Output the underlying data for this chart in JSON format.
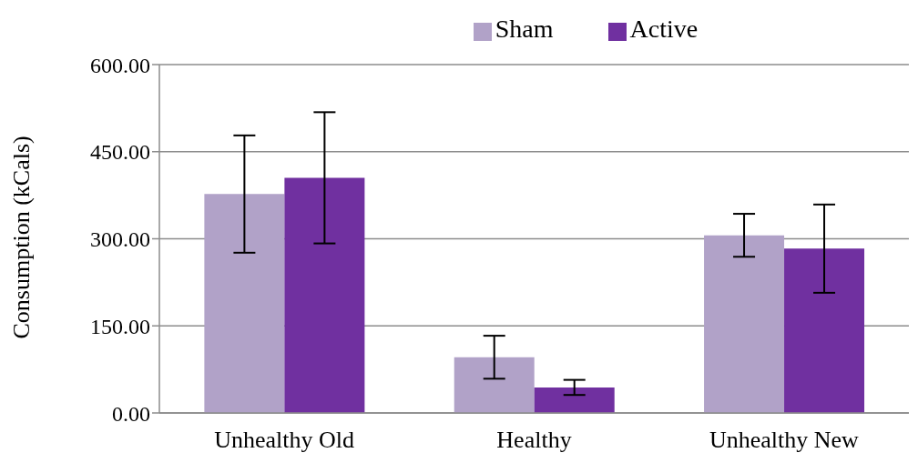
{
  "chart_data": {
    "type": "bar",
    "ylabel": "Consumption (kCals)",
    "categories": [
      "Unhealthy Old",
      "Healthy",
      "Unhealthy New"
    ],
    "series": [
      {
        "name": "Sham",
        "color": "#b1a2c8",
        "values": [
          377,
          96,
          306
        ],
        "errors": [
          101,
          37,
          37
        ]
      },
      {
        "name": "Active",
        "color": "#7030a0",
        "values": [
          405,
          44,
          283
        ],
        "errors": [
          113,
          13,
          76
        ]
      }
    ],
    "ylim": [
      0,
      600
    ],
    "yticks": [
      {
        "value": 0,
        "label": "0.00"
      },
      {
        "value": 150,
        "label": "150.00"
      },
      {
        "value": 300,
        "label": "300.00"
      },
      {
        "value": 450,
        "label": "450.00"
      },
      {
        "value": 600,
        "label": "600.00"
      }
    ],
    "grid": "y",
    "legend": "top"
  }
}
